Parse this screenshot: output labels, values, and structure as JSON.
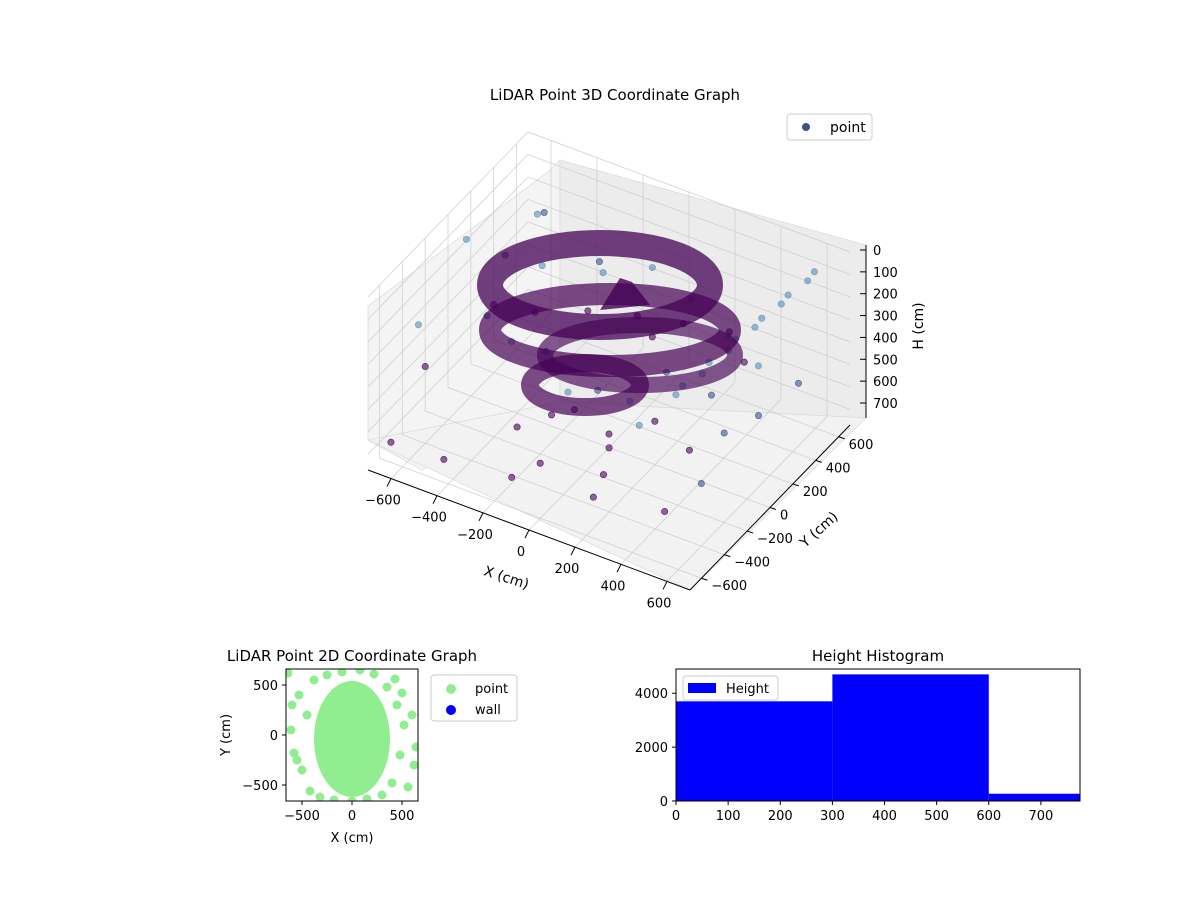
{
  "colors": {
    "point_dark": "#440154",
    "point_mid": "#3b528b",
    "point_light": "#5a8fb0",
    "scatter2d_point": "#90ee90",
    "scatter2d_wall": "#0000ff",
    "histogram": "#0000ff",
    "pane": "#f2f2f2",
    "grid": "#cccccc"
  },
  "chart_data": [
    {
      "type": "scatter",
      "projection": "3d",
      "title": "LiDAR Point 3D Coordinate Graph",
      "xlabel": "X (cm)",
      "ylabel": "Y (cm)",
      "zlabel": "H (cm)",
      "x_ticks": [
        "−600",
        "−400",
        "−200",
        "0",
        "200",
        "400",
        "600"
      ],
      "y_ticks": [
        "−600",
        "−400",
        "−200",
        "0",
        "200",
        "400",
        "600"
      ],
      "z_ticks": [
        "0",
        "100",
        "200",
        "300",
        "400",
        "500",
        "600",
        "700"
      ],
      "xlim": [
        -700,
        700
      ],
      "ylim": [
        -700,
        700
      ],
      "zlim": [
        0,
        770
      ],
      "z_inverted": true,
      "legend": [
        "point"
      ],
      "legend_position": "top-right",
      "grid": true,
      "series": [
        {
          "name": "point",
          "points": [
            [
              -620,
              0,
              80
            ],
            [
              -520,
              420,
              150
            ],
            [
              -380,
              180,
              200
            ],
            [
              -250,
              -350,
              210
            ],
            [
              -150,
              250,
              180
            ],
            [
              80,
              -520,
              220
            ],
            [
              300,
              -420,
              230
            ],
            [
              460,
              120,
              160
            ],
            [
              520,
              -150,
              260
            ],
            [
              -50,
              480,
              240
            ],
            [
              200,
              320,
              200
            ],
            [
              -470,
              -120,
              300
            ],
            [
              -300,
              520,
              330
            ],
            [
              390,
              -520,
              250
            ],
            [
              600,
              100,
              230
            ],
            [
              -620,
              -420,
              240
            ],
            [
              -580,
              600,
              260
            ],
            [
              100,
              -300,
              320
            ],
            [
              -200,
              -150,
              340
            ],
            [
              250,
              0,
              340
            ],
            [
              650,
              -300,
              300
            ],
            [
              640,
              450,
              20
            ],
            [
              600,
              300,
              60
            ],
            [
              560,
              150,
              100
            ],
            [
              520,
              0,
              140
            ],
            [
              480,
              -150,
              180
            ],
            [
              440,
              -300,
              210
            ],
            [
              620,
              550,
              40
            ],
            [
              580,
              400,
              80
            ],
            [
              540,
              250,
              120
            ],
            [
              500,
              100,
              150
            ],
            [
              460,
              -50,
              190
            ],
            [
              420,
              -200,
              230
            ],
            [
              200,
              650,
              520
            ],
            [
              0,
              650,
              560
            ],
            [
              -200,
              650,
              600
            ],
            [
              -400,
              620,
              640
            ],
            [
              -600,
              560,
              690
            ],
            [
              -650,
              -600,
              680
            ],
            [
              -400,
              -640,
              640
            ],
            [
              -100,
              -650,
              600
            ],
            [
              250,
              -640,
              560
            ],
            [
              550,
              -620,
              520
            ],
            [
              -650,
              -300,
              500
            ],
            [
              -650,
              300,
              540
            ],
            [
              650,
              -500,
              420
            ],
            [
              650,
              0,
              380
            ],
            [
              650,
              350,
              420
            ],
            [
              -600,
              300,
              300
            ],
            [
              -100,
              580,
              620
            ],
            [
              300,
              580,
              580
            ],
            [
              -350,
              -100,
              760
            ],
            [
              -150,
              -300,
              740
            ],
            [
              100,
              200,
              720
            ],
            [
              -200,
              100,
              730
            ],
            [
              50,
              -100,
              700
            ],
            [
              -250,
              0,
              720
            ],
            [
              150,
              -350,
              650
            ],
            [
              0,
              0,
              710
            ],
            [
              300,
              100,
              720
            ]
          ]
        }
      ]
    },
    {
      "type": "scatter",
      "title": "LiDAR Point 2D Coordinate Graph",
      "xlabel": "X (cm)",
      "ylabel": "Y (cm)",
      "x_ticks": [
        "−500",
        "0",
        "500"
      ],
      "y_ticks": [
        "500",
        "0",
        "−500"
      ],
      "xlim": [
        -660,
        660
      ],
      "ylim": [
        -660,
        660
      ],
      "legend": [
        "point",
        "wall"
      ],
      "legend_position": "outside-right",
      "series": [
        {
          "name": "point",
          "points": [
            [
              -640,
              620
            ],
            [
              -610,
              50
            ],
            [
              -580,
              -180
            ],
            [
              -530,
              400
            ],
            [
              -500,
              -350
            ],
            [
              -450,
              200
            ],
            [
              -420,
              -560
            ],
            [
              -380,
              550
            ],
            [
              -320,
              -620
            ],
            [
              -250,
              600
            ],
            [
              -180,
              -650
            ],
            [
              -100,
              630
            ],
            [
              0,
              -660
            ],
            [
              80,
              650
            ],
            [
              150,
              -640
            ],
            [
              220,
              610
            ],
            [
              300,
              -600
            ],
            [
              350,
              480
            ],
            [
              400,
              -480
            ],
            [
              450,
              300
            ],
            [
              480,
              -200
            ],
            [
              520,
              100
            ],
            [
              560,
              -520
            ],
            [
              600,
              200
            ],
            [
              620,
              -300
            ],
            [
              640,
              -120
            ],
            [
              500,
              420
            ],
            [
              -550,
              -250
            ],
            [
              -600,
              300
            ],
            [
              430,
              560
            ]
          ]
        },
        {
          "name": "wall",
          "points": []
        }
      ]
    },
    {
      "type": "bar",
      "title": "Height Histogram",
      "legend": [
        "Height"
      ],
      "legend_position": "top-left",
      "x_ticks": [
        "0",
        "100",
        "200",
        "300",
        "400",
        "500",
        "600",
        "700"
      ],
      "y_ticks": [
        "0",
        "2000",
        "4000"
      ],
      "xlim": [
        0,
        775
      ],
      "ylim": [
        0,
        4900
      ],
      "bins": [
        {
          "start": 0,
          "end": 300,
          "value": 3700
        },
        {
          "start": 300,
          "end": 600,
          "value": 4700
        },
        {
          "start": 600,
          "end": 775,
          "value": 270
        }
      ]
    }
  ]
}
